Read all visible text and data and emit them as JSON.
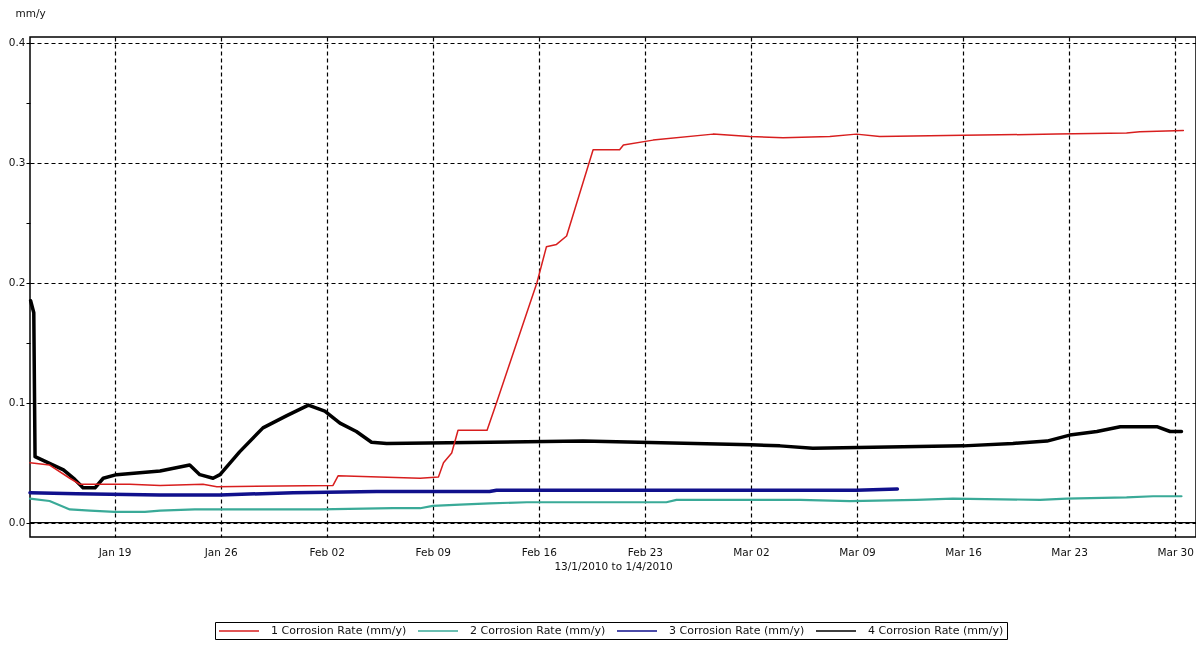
{
  "chart_data": {
    "type": "line",
    "xlabel": "13/1/2010 to 1/4/2010",
    "ylabel": "mm/y",
    "xlim": [
      "2010-01-13T10:00",
      "2010-03-31T09:00"
    ],
    "xticks": [
      {
        "value": "2010-01-19",
        "label": "Jan 19"
      },
      {
        "value": "2010-01-26",
        "label": "Jan 26"
      },
      {
        "value": "2010-02-02",
        "label": "Feb 02"
      },
      {
        "value": "2010-02-09",
        "label": "Feb 09"
      },
      {
        "value": "2010-02-16",
        "label": "Feb 16"
      },
      {
        "value": "2010-02-23",
        "label": "Feb 23"
      },
      {
        "value": "2010-03-02",
        "label": "Mar 02"
      },
      {
        "value": "2010-03-09",
        "label": "Mar 09"
      },
      {
        "value": "2010-03-16",
        "label": "Mar 16"
      },
      {
        "value": "2010-03-23",
        "label": "Mar 23"
      },
      {
        "value": "2010-03-30",
        "label": "Mar 30"
      }
    ],
    "ylim": [
      -0.012,
      0.405
    ],
    "yticks": [
      {
        "value": 0,
        "label": "0.0"
      },
      {
        "value": 0.1,
        "label": "0.1"
      },
      {
        "value": 0.15,
        "label": null
      },
      {
        "value": 0.2,
        "label": "0.2"
      },
      {
        "value": 0.25,
        "label": null
      },
      {
        "value": 0.3,
        "label": "0.3"
      },
      {
        "value": 0.35,
        "label": null
      },
      {
        "value": 0.4,
        "label": "0.4"
      }
    ],
    "grid": true,
    "legend": "bottom",
    "ref_lines": [
      {
        "axis": "y",
        "value": 0,
        "color": "#000000"
      }
    ],
    "series": [
      {
        "name": "1 Corrosion Rate (mm/y)",
        "color": "#d81e1e",
        "x": [
          "2010-01-13T10:00",
          "2010-01-14T17:00",
          "2010-01-16T01:00",
          "2010-01-16T17:00",
          "2010-01-18T01:00",
          "2010-01-20T00:00",
          "2010-01-22T00:00",
          "2010-01-24T20:00",
          "2010-01-25T18:00",
          "2010-02-02T10:00",
          "2010-02-02T18:00",
          "2010-02-08T04:00",
          "2010-02-09T09:00",
          "2010-02-09T17:00",
          "2010-02-10T06:00",
          "2010-02-10T16:00",
          "2010-02-12T14:00",
          "2010-02-13T05:00",
          "2010-02-15T21:00",
          "2010-02-16T12:00",
          "2010-02-17T04:00",
          "2010-02-17T20:00",
          "2010-02-19T14:00",
          "2010-02-21T08:00",
          "2010-02-21T14:00",
          "2010-02-23T13:00",
          "2010-02-27T12:00",
          "2010-03-01T22:00",
          "2010-03-04T03:00",
          "2010-03-07T05:00",
          "2010-03-08T23:00",
          "2010-03-10T12:00",
          "2010-03-16T00:00",
          "2010-03-22T04:00",
          "2010-03-26T19:00",
          "2010-03-27T16:00",
          "2010-03-30T13:00"
        ],
        "values": [
          0.05,
          0.048,
          0.037,
          0.032,
          0.032,
          0.032,
          0.031,
          0.032,
          0.03,
          0.031,
          0.039,
          0.037,
          0.038,
          0.05,
          0.058,
          0.077,
          0.077,
          0.1,
          0.2,
          0.23,
          0.232,
          0.239,
          0.311,
          0.311,
          0.315,
          0.319,
          0.324,
          0.322,
          0.321,
          0.322,
          0.324,
          0.322,
          0.323,
          0.324,
          0.325,
          0.326,
          0.327
        ]
      },
      {
        "name": "2 Corrosion Rate (mm/y)",
        "color": "#3aaa98",
        "x": [
          "2010-01-13T10:00",
          "2010-01-14T17:00",
          "2010-01-16T01:00",
          "2010-01-17T09:00",
          "2010-01-19T00:00",
          "2010-01-21T00:00",
          "2010-01-22T00:00",
          "2010-01-24T07:00",
          "2010-02-01T13:00",
          "2010-02-06T09:00",
          "2010-02-08T04:00",
          "2010-02-09T00:00",
          "2010-02-10T19:00",
          "2010-02-12T18:00",
          "2010-02-15T05:00",
          "2010-02-24T10:00",
          "2010-02-25T02:00",
          "2010-02-27T12:00",
          "2010-03-05T06:00",
          "2010-03-08T13:00",
          "2010-03-12T22:00",
          "2010-03-15T08:00",
          "2010-03-21T02:00",
          "2010-03-22T20:00",
          "2010-03-26T19:00",
          "2010-03-28T13:00",
          "2010-03-30T10:00"
        ],
        "values": [
          0.02,
          0.018,
          0.011,
          0.01,
          0.009,
          0.009,
          0.01,
          0.011,
          0.011,
          0.012,
          0.012,
          0.014,
          0.015,
          0.016,
          0.017,
          0.017,
          0.019,
          0.019,
          0.019,
          0.018,
          0.019,
          0.02,
          0.019,
          0.02,
          0.021,
          0.022,
          0.022
        ]
      },
      {
        "name": "3 Corrosion Rate (mm/y)",
        "color": "#10108c",
        "x": [
          "2010-01-13T10:00",
          "2010-01-16T12:00",
          "2010-01-22T00:00",
          "2010-01-25T23:00",
          "2010-01-30T19:00",
          "2010-02-05T07:00",
          "2010-02-12T18:00",
          "2010-02-13T05:00",
          "2010-03-08T23:00",
          "2010-03-11T16:00"
        ],
        "values": [
          0.025,
          0.024,
          0.023,
          0.023,
          0.025,
          0.026,
          0.026,
          0.027,
          0.027,
          0.028
        ]
      },
      {
        "name": "4 Corrosion Rate (mm/y)",
        "color": "#000000",
        "x": [
          "2010-01-13T11:00",
          "2010-01-13T16:00",
          "2010-01-13T18:00",
          "2010-01-15T15:00",
          "2010-01-16T09:00",
          "2010-01-16T22:00",
          "2010-01-17T17:00",
          "2010-01-18T06:00",
          "2010-01-19T03:00",
          "2010-01-22T00:00",
          "2010-01-23T23:00",
          "2010-01-24T15:00",
          "2010-01-25T12:00",
          "2010-01-25T23:00",
          "2010-01-27T06:00",
          "2010-01-28T19:00",
          "2010-01-30T08:00",
          "2010-01-31T19:00",
          "2010-02-01T21:00",
          "2010-02-02T21:00",
          "2010-02-03T23:00",
          "2010-02-04T23:00",
          "2010-02-05T23:00",
          "2010-02-18T22:00",
          "2010-03-02T00:00",
          "2010-03-03T22:00",
          "2010-03-06T02:00",
          "2010-03-16T00:00",
          "2010-03-19T07:00",
          "2010-03-21T13:00",
          "2010-03-23T01:00",
          "2010-03-24T20:00",
          "2010-03-26T09:00",
          "2010-03-28T19:00",
          "2010-03-29T16:00",
          "2010-03-30T10:00"
        ],
        "values": [
          0.185,
          0.175,
          0.055,
          0.044,
          0.036,
          0.029,
          0.029,
          0.037,
          0.04,
          0.043,
          0.048,
          0.04,
          0.037,
          0.04,
          0.059,
          0.079,
          0.089,
          0.098,
          0.093,
          0.083,
          0.076,
          0.067,
          0.066,
          0.068,
          0.065,
          0.064,
          0.062,
          0.064,
          0.066,
          0.068,
          0.073,
          0.076,
          0.08,
          0.08,
          0.076,
          0.076
        ]
      }
    ]
  }
}
